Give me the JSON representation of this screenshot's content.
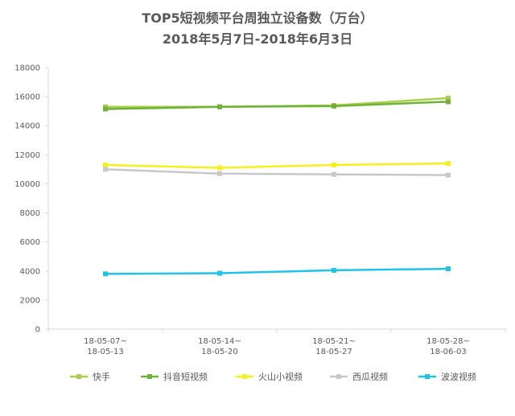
{
  "chart_data": {
    "type": "line",
    "title": "TOP5短视频平台周独立设备数（万台）",
    "subtitle": "2018年5月7日-2018年6月3日",
    "xlabel": "",
    "ylabel": "",
    "categories": [
      [
        "18-05-07~",
        "18-05-13"
      ],
      [
        "18-05-14~",
        "18-05-20"
      ],
      [
        "18-05-21~",
        "18-05-27"
      ],
      [
        "18-05-28~",
        "18-06-03"
      ]
    ],
    "ylim": [
      0,
      18000
    ],
    "yticks": [
      0,
      2000,
      4000,
      6000,
      8000,
      10000,
      12000,
      14000,
      16000,
      18000
    ],
    "grid": false,
    "legend_position": "bottom",
    "series": [
      {
        "name": "快手",
        "color": "#A9D04A",
        "values": [
          15300,
          15300,
          15400,
          15900
        ]
      },
      {
        "name": "抖音短视频",
        "color": "#70B239",
        "values": [
          15150,
          15300,
          15350,
          15650
        ]
      },
      {
        "name": "火山小视频",
        "color": "#F5F01E",
        "values": [
          11300,
          11100,
          11300,
          11400
        ]
      },
      {
        "name": "西瓜视频",
        "color": "#C8C8C8",
        "values": [
          11000,
          10700,
          10650,
          10600
        ]
      },
      {
        "name": "波波视频",
        "color": "#1FC3E8",
        "values": [
          3800,
          3850,
          4050,
          4150
        ]
      }
    ]
  }
}
